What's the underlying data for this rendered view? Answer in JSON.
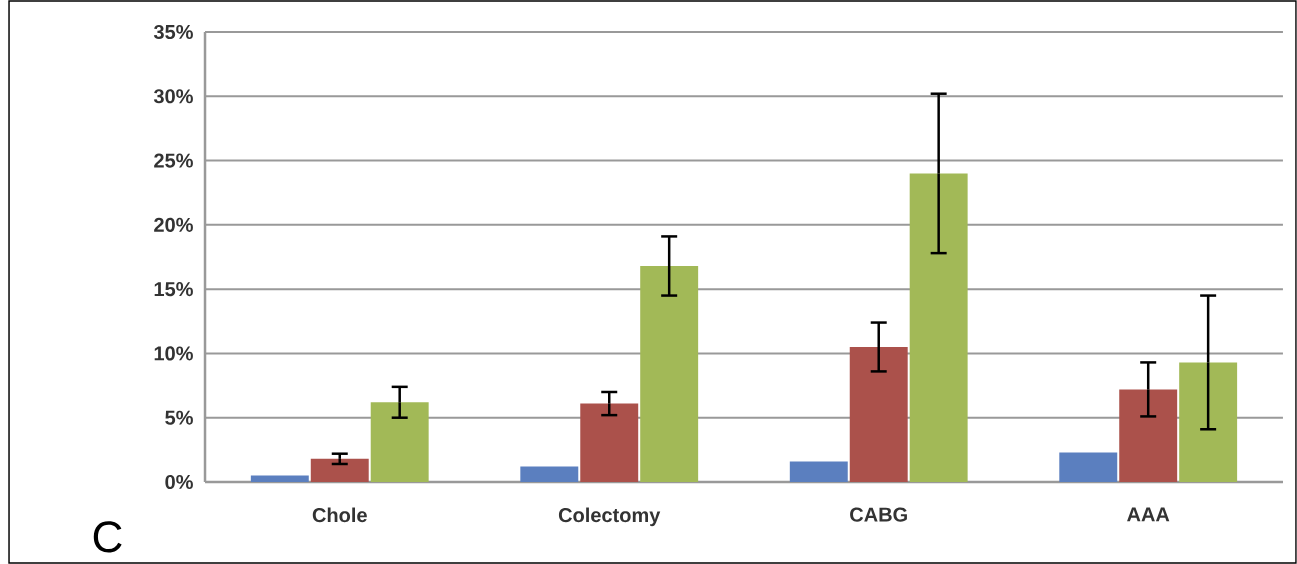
{
  "chart_data": {
    "type": "bar",
    "categories": [
      "Chole",
      "Colectomy",
      "CABG",
      "AAA"
    ],
    "series": [
      {
        "color": "#5b7fbf",
        "values": [
          0.5,
          1.2,
          1.6,
          2.3
        ]
      },
      {
        "color": "#ab514b",
        "values": [
          1.8,
          6.1,
          10.5,
          7.2
        ],
        "errors": [
          0.4,
          0.9,
          1.9,
          2.1
        ]
      },
      {
        "color": "#a2b957",
        "values": [
          6.2,
          16.8,
          24.0,
          9.3
        ],
        "errors": [
          1.2,
          2.3,
          6.2,
          5.2
        ]
      }
    ],
    "ylim": [
      0,
      35
    ],
    "yticks": [
      {
        "value": 0,
        "label": "0%"
      },
      {
        "value": 5,
        "label": "5%"
      },
      {
        "value": 10,
        "label": "10%"
      },
      {
        "value": 15,
        "label": "15%"
      },
      {
        "value": 20,
        "label": "20%"
      },
      {
        "value": 25,
        "label": "25%"
      },
      {
        "value": 30,
        "label": "30%"
      },
      {
        "value": 35,
        "label": "35%"
      }
    ],
    "grid": "y",
    "annotations": [
      "C"
    ]
  }
}
